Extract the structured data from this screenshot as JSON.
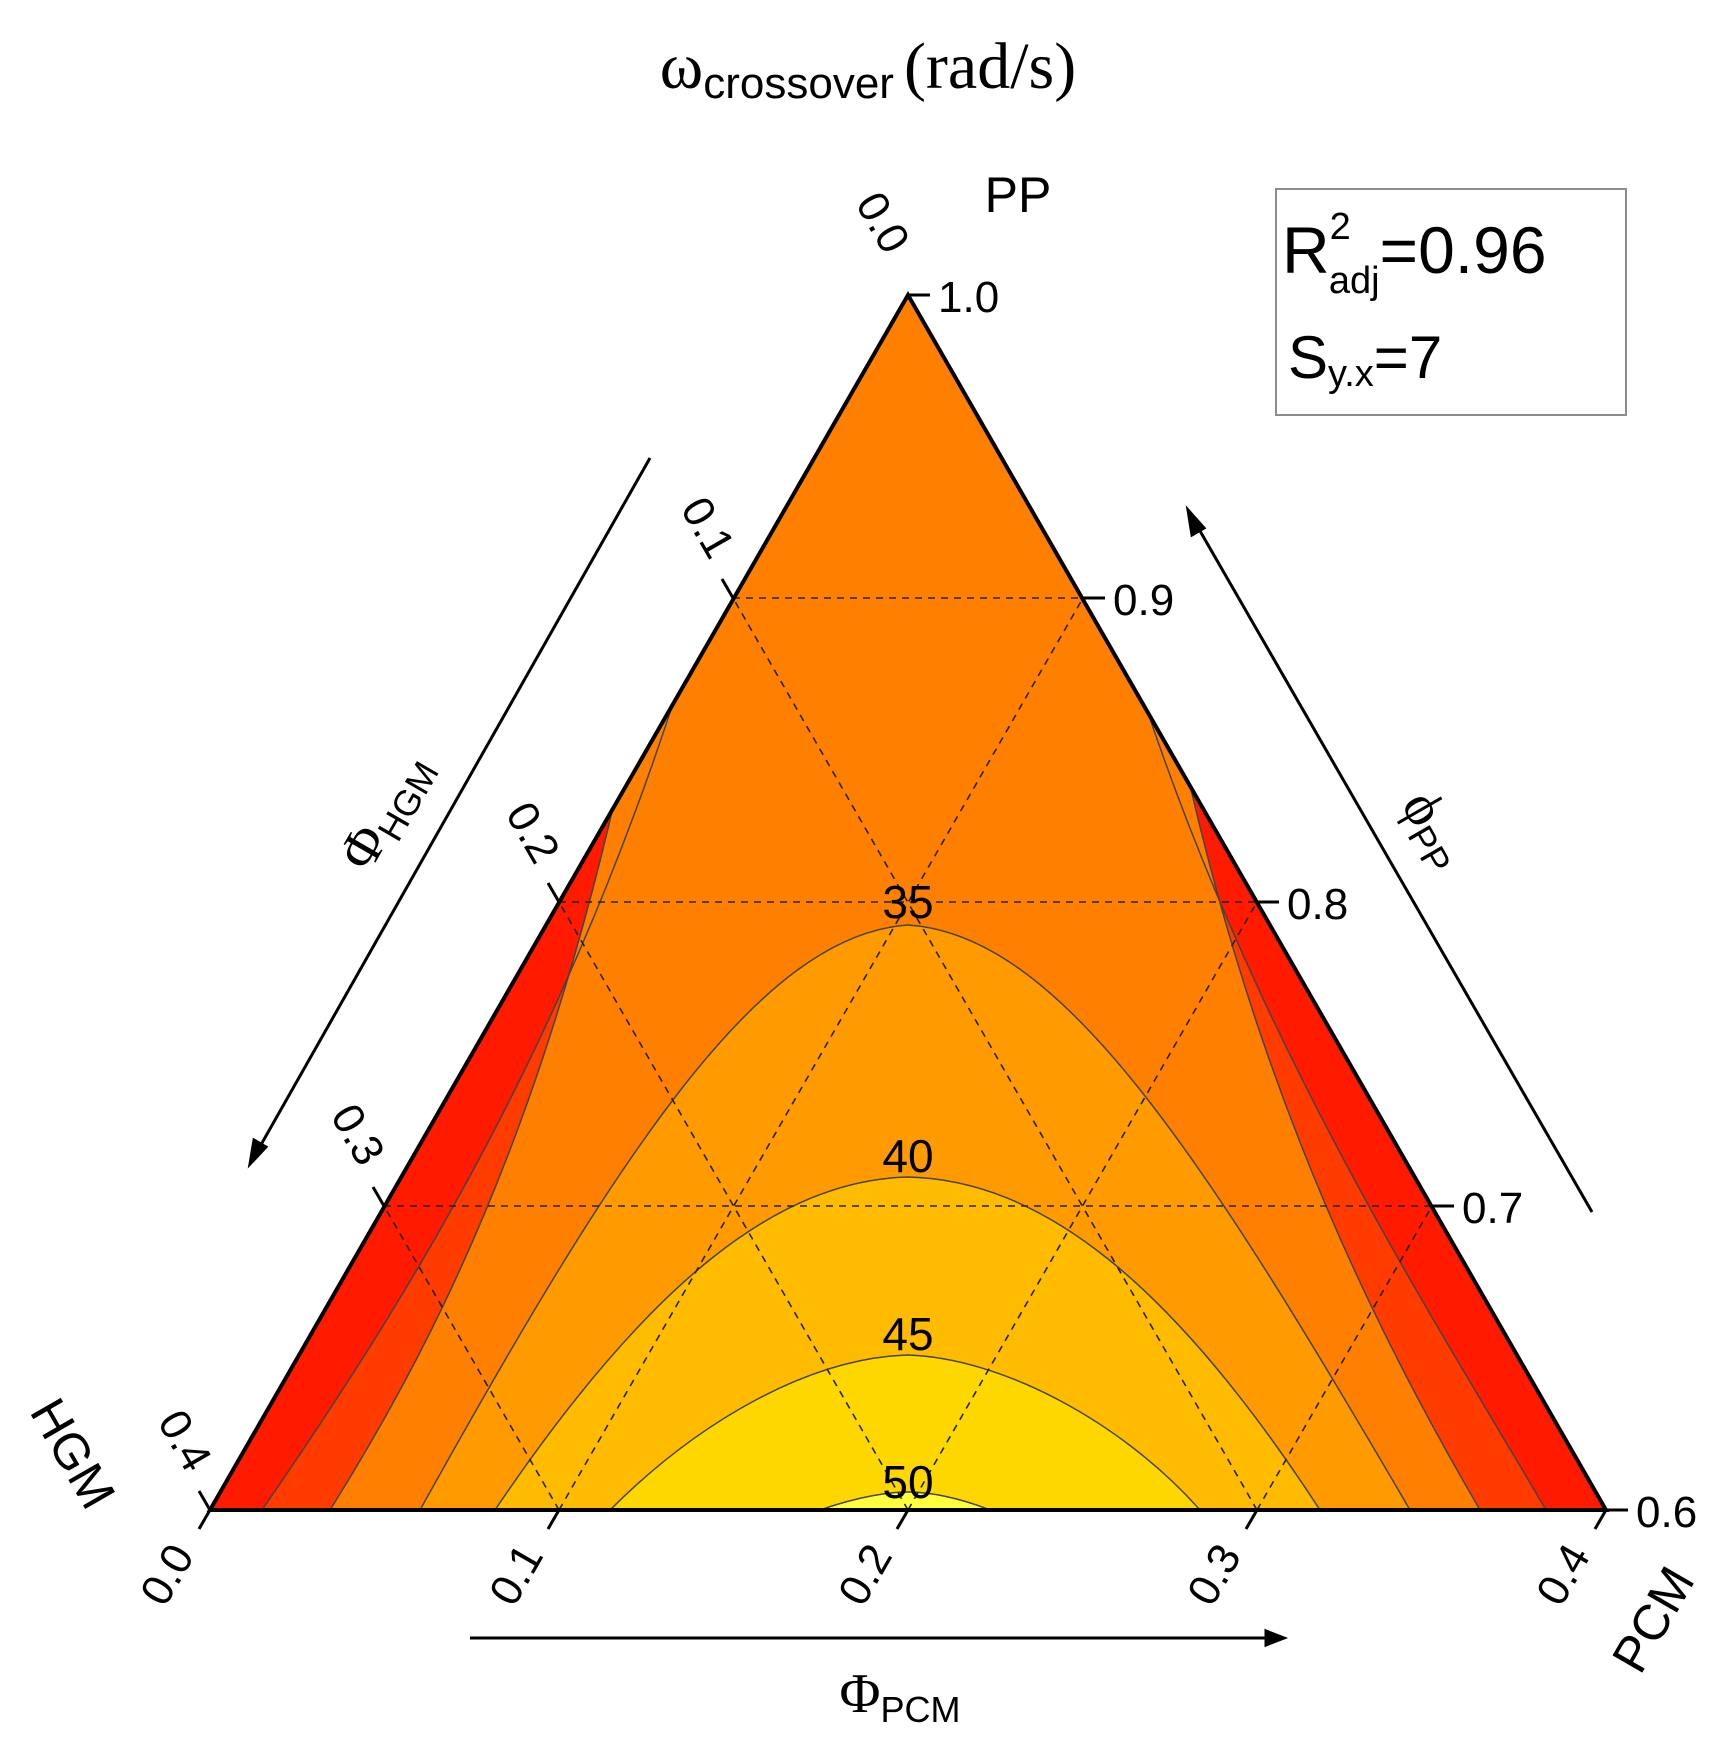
{
  "chart_data": {
    "type": "ternary-contour",
    "title": {
      "symbol": "ω",
      "subscript": "crossover",
      "unit": "(rad/s)"
    },
    "vertices": {
      "top": "PP",
      "left": "HGM",
      "right": "PCM"
    },
    "axes": {
      "pp": {
        "label_symbol": "ϕ",
        "label_sub": "PP",
        "range": [
          0.6,
          1.0
        ],
        "ticks": [
          "1.0",
          "0.9",
          "0.8",
          "0.7",
          "0.6"
        ]
      },
      "hgm": {
        "label_symbol": "Φ",
        "label_sub": "HGM",
        "range": [
          0.0,
          0.4
        ],
        "ticks": [
          "0.0",
          "0.1",
          "0.2",
          "0.3",
          "0.4"
        ]
      },
      "pcm": {
        "label_symbol": "Φ",
        "label_sub": "PCM",
        "range": [
          0.0,
          0.4
        ],
        "ticks": [
          "0.0",
          "0.1",
          "0.2",
          "0.3",
          "0.4"
        ]
      }
    },
    "contour_levels": [
      35,
      40,
      45,
      50
    ],
    "contour_labels": [
      "35",
      "40",
      "45",
      "50"
    ],
    "contour_peaks": [
      {
        "level": 35,
        "pcm": 0.2,
        "pp": 0.8
      },
      {
        "level": 40,
        "pcm": 0.2,
        "pp": 0.715
      },
      {
        "level": 45,
        "pcm": 0.2,
        "pp": 0.657
      },
      {
        "level": 50,
        "pcm": 0.2,
        "pp": 0.603
      }
    ],
    "fill_colors": [
      "#ff1a00",
      "#ff3b00",
      "#ff8000",
      "#ff9a00",
      "#ffbb00",
      "#ffd700",
      "#ffff3c"
    ],
    "grid": true,
    "stats": {
      "r2_base": "R",
      "r2_sup": "2",
      "r2_sub": "adj",
      "r2_value": "=0.96",
      "s_base": "S",
      "s_sub": "y.x",
      "s_value": "=7"
    }
  }
}
